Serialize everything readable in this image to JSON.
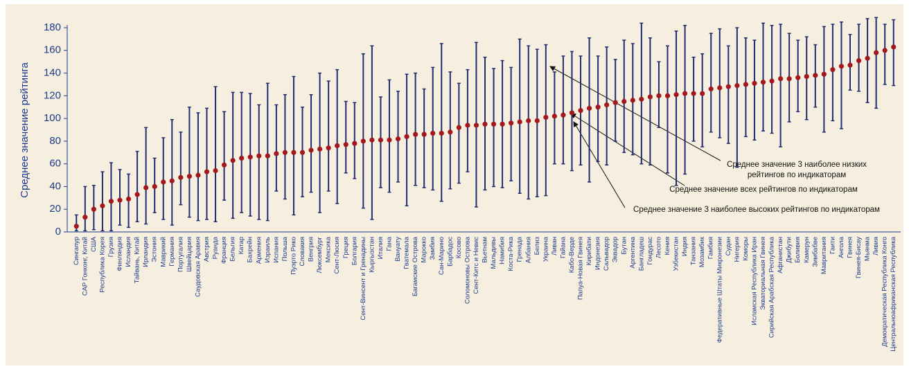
{
  "chart_data": {
    "type": "range-dot",
    "y_label": "Среднее значение рейтинга",
    "categories": [
      "Сингапур",
      "САР Гонконг, Китай",
      "США",
      "Республика Корея",
      "Грузия",
      "Финляндия",
      "Исландия",
      "Тайвань, Китай",
      "Ирландия",
      "Эстония",
      "Маврикий",
      "Германия",
      "Португалия",
      "Швейцария",
      "Саудовская Аравия",
      "Австрия",
      "Руанда",
      "Франция",
      "Бельгия",
      "Катар",
      "Бахрейн",
      "Армения",
      "Израиль",
      "Испания",
      "Польша",
      "Пуэрто Рико",
      "Словакия",
      "Венгрия",
      "Люксембург",
      "Мексика",
      "Сент-Люсия",
      "Греция",
      "Болгария",
      "Сент-Винсент и Гренадины",
      "Кыргызстан",
      "Италия",
      "Гана",
      "Вануату",
      "Гватемала",
      "Багамские Острова",
      "Марокко",
      "Замбия",
      "Сан-Марино",
      "Барбадос",
      "Косово",
      "Соломоновы Острова",
      "Сент-Китс и Невис",
      "Вьетнам",
      "Мальдивы",
      "Намибия",
      "Коста-Рика",
      "Гренада",
      "Албания",
      "Белиз",
      "Украина",
      "Ливан",
      "Гайана",
      "Кабо-Верде",
      "Папуа-Новая Гвинея",
      "Кирибати",
      "Индонезия",
      "Сальвадор",
      "Эквадор",
      "Бутан",
      "Аргентина",
      "Бангладеш",
      "Гондурас",
      "Лесото",
      "Кения",
      "Узбекистан",
      "Индия",
      "Танзания",
      "Мозамбик",
      "Гамбия",
      "Федеративные Штаты Микронезии",
      "Судан",
      "Нигерия",
      "Коморы",
      "Исламская Республика Иран",
      "Экваториальная Гвинея",
      "Сирийская Арабская Республика",
      "Афганистан",
      "Джибути",
      "Боливия",
      "Камерун",
      "Зимбабве",
      "Мавритания",
      "Гаити",
      "Ангола",
      "Гвинея",
      "Гвинея-Бисау",
      "Мьянма",
      "Ливия",
      "Демократическая Республика Конго",
      "Центральноафриканская Республика"
    ],
    "values": [
      5,
      13,
      20,
      23,
      27,
      28,
      29,
      33,
      39,
      40,
      44,
      45,
      48,
      49,
      50,
      53,
      54,
      59,
      63,
      65,
      66,
      67,
      67,
      69,
      70,
      70,
      70,
      72,
      73,
      74,
      76,
      77,
      78,
      80,
      81,
      81,
      81,
      82,
      84,
      86,
      86,
      87,
      87,
      88,
      92,
      94,
      94,
      95,
      95,
      95,
      96,
      97,
      98,
      98,
      101,
      102,
      103,
      105,
      107,
      109,
      110,
      112,
      114,
      115,
      116,
      117,
      119,
      120,
      120,
      121,
      122,
      122,
      122,
      126,
      127,
      128,
      129,
      130,
      131,
      132,
      133,
      135,
      135,
      136,
      137,
      138,
      139,
      143,
      146,
      147,
      151,
      153,
      158,
      160,
      163
    ],
    "ranges_low": [
      1,
      1,
      2,
      1,
      1,
      6,
      4,
      9,
      7,
      17,
      11,
      6,
      24,
      13,
      10,
      11,
      9,
      28,
      12,
      17,
      14,
      11,
      10,
      36,
      29,
      15,
      31,
      35,
      17,
      36,
      25,
      52,
      47,
      21,
      11,
      39,
      35,
      44,
      23,
      41,
      39,
      37,
      27,
      38,
      43,
      53,
      22,
      37,
      40,
      39,
      45,
      34,
      29,
      31,
      32,
      60,
      60,
      54,
      59,
      44,
      62,
      59,
      80,
      70,
      68,
      60,
      59,
      92,
      52,
      41,
      51,
      80,
      75,
      88,
      83,
      78,
      57,
      84,
      81,
      89,
      87,
      75,
      97,
      106,
      99,
      110,
      88,
      98,
      91,
      125,
      124,
      114,
      109,
      130,
      129
    ],
    "ranges_high": [
      15,
      40,
      41,
      53,
      61,
      55,
      51,
      71,
      92,
      65,
      83,
      99,
      88,
      110,
      105,
      109,
      128,
      106,
      123,
      123,
      122,
      112,
      131,
      112,
      121,
      137,
      110,
      121,
      140,
      133,
      143,
      115,
      114,
      157,
      164,
      119,
      134,
      124,
      139,
      140,
      126,
      145,
      166,
      141,
      131,
      143,
      167,
      154,
      144,
      151,
      145,
      170,
      164,
      161,
      165,
      141,
      155,
      159,
      155,
      171,
      155,
      163,
      152,
      169,
      166,
      184,
      171,
      150,
      164,
      177,
      182,
      154,
      157,
      175,
      179,
      164,
      180,
      171,
      169,
      184,
      182,
      183,
      175,
      169,
      172,
      165,
      181,
      183,
      185,
      174,
      183,
      188,
      189,
      183,
      187
    ],
    "color": "#a3171f",
    "bar_color": "#1f2c6e",
    "ylim": [
      0,
      180
    ],
    "yticks": [
      0,
      20,
      40,
      60,
      80,
      100,
      120,
      140,
      160,
      180
    ],
    "annotations": [
      {
        "text": [
          "Среднее значение 3 наиболее низких",
          "рейтингов по индикаторам"
        ]
      },
      {
        "text": [
          "Среднее значение всех рейтингов по индикаторам"
        ]
      },
      {
        "text": [
          "Среднее значение 3 наиболее высоких рейтингов по индикаторам"
        ]
      }
    ]
  }
}
